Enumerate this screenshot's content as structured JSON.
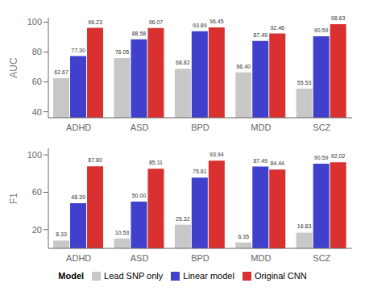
{
  "chart_data": [
    {
      "type": "bar",
      "categories": [
        "ADHD",
        "ASD",
        "BPD",
        "MDD",
        "SCZ"
      ],
      "ylabel": "AUC",
      "ylim": [
        36,
        103
      ],
      "yticks": [
        40,
        60,
        80,
        100
      ],
      "data_labels": true,
      "grid": false,
      "series": [
        {
          "name": "Lead SNP only",
          "color": "#c8c8c8",
          "values": [
            62.67,
            76.05,
            68.82,
            66.4,
            55.53
          ],
          "value_labels": [
            "62.67",
            "76.05",
            "68.82",
            "66.40",
            "55.53"
          ]
        },
        {
          "name": "Linear model",
          "color": "#4040cc",
          "values": [
            77.3,
            88.58,
            93.89,
            87.49,
            90.59
          ],
          "value_labels": [
            "77.30",
            "88.58",
            "93.89",
            "87.49",
            "90.59"
          ]
        },
        {
          "name": "Original CNN",
          "color": "#d93030",
          "values": [
            96.23,
            96.07,
            96.45,
            92.46,
            98.63
          ],
          "value_labels": [
            "96.23",
            "96.07",
            "96.45",
            "92.46",
            "98.63"
          ]
        }
      ]
    },
    {
      "type": "bar",
      "categories": [
        "ADHD",
        "ASD",
        "BPD",
        "MDD",
        "SCZ"
      ],
      "ylabel": "F1",
      "ylim": [
        0,
        107
      ],
      "yticks": [
        20,
        60,
        100
      ],
      "data_labels": true,
      "grid": false,
      "legend": "bottom",
      "legend_title": "Model",
      "series": [
        {
          "name": "Lead SNP only",
          "color": "#c8c8c8",
          "values": [
            8.33,
            10.53,
            25.32,
            6.35,
            16.83
          ],
          "value_labels": [
            "8.33",
            "10.53",
            "25.32",
            "6.35",
            "16.83"
          ]
        },
        {
          "name": "Linear model",
          "color": "#4040cc",
          "values": [
            48.39,
            50.0,
            75.81,
            87.49,
            90.59
          ],
          "value_labels": [
            "48.39",
            "50.00",
            "75.81",
            "87.49",
            "90.59"
          ]
        },
        {
          "name": "Original CNN",
          "color": "#d93030",
          "values": [
            87.8,
            85.11,
            93.94,
            84.44,
            92.02
          ],
          "value_labels": [
            "87.80",
            "85.11",
            "93.94",
            "84.44",
            "92.02"
          ]
        }
      ]
    }
  ]
}
